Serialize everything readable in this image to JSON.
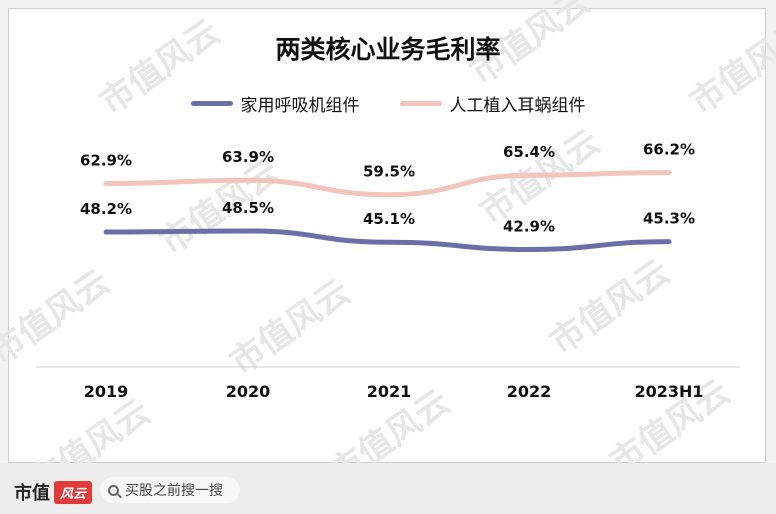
{
  "chart_data": {
    "type": "line",
    "title": "两类核心业务毛利率",
    "categories": [
      "2019",
      "2020",
      "2021",
      "2022",
      "2023H1"
    ],
    "series": [
      {
        "name": "家用呼吸机组件",
        "color": "#6a6fa8",
        "values": [
          48.2,
          48.5,
          45.1,
          42.9,
          45.3
        ],
        "labels": [
          "48.2%",
          "48.5%",
          "45.1%",
          "42.9%",
          "45.3%"
        ]
      },
      {
        "name": "人工植入耳蜗组件",
        "color": "#f2c4bb",
        "values": [
          62.9,
          63.9,
          59.5,
          65.4,
          66.2
        ],
        "labels": [
          "62.9%",
          "63.9%",
          "59.5%",
          "65.4%",
          "66.2%"
        ]
      }
    ],
    "legend": "top",
    "grid": false
  },
  "watermark": "市值风云",
  "footer": {
    "brand": "市值",
    "brand_logo": "风云",
    "search_text": "买股之前搜一搜"
  }
}
